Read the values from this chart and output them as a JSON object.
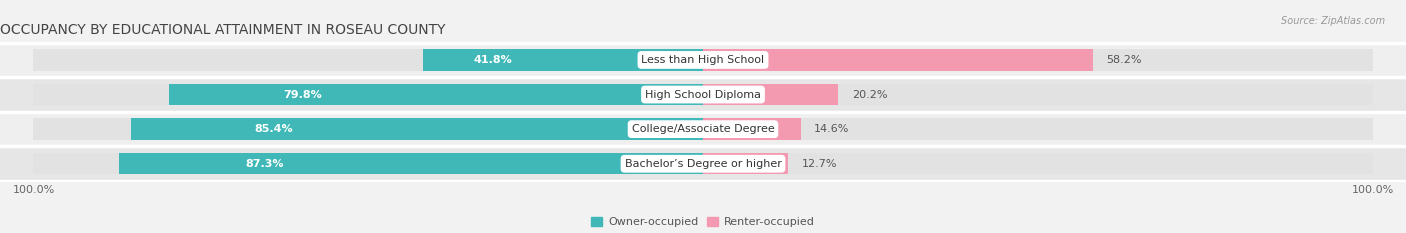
{
  "title": "OCCUPANCY BY EDUCATIONAL ATTAINMENT IN ROSEAU COUNTY",
  "source": "Source: ZipAtlas.com",
  "categories": [
    "Less than High School",
    "High School Diploma",
    "College/Associate Degree",
    "Bachelor’s Degree or higher"
  ],
  "owner_pct": [
    41.8,
    79.8,
    85.4,
    87.3
  ],
  "renter_pct": [
    58.2,
    20.2,
    14.6,
    12.7
  ],
  "owner_color": "#40b8b8",
  "renter_color": "#f49ab0",
  "row_colors": [
    "#f0f0f0",
    "#e8e8e8"
  ],
  "bar_bg_color": "#e2e2e2",
  "title_fontsize": 10,
  "label_fontsize": 8,
  "pct_fontsize": 8,
  "tick_fontsize": 8,
  "bar_height": 0.62,
  "legend_owner": "Owner-occupied",
  "legend_renter": "Renter-occupied"
}
